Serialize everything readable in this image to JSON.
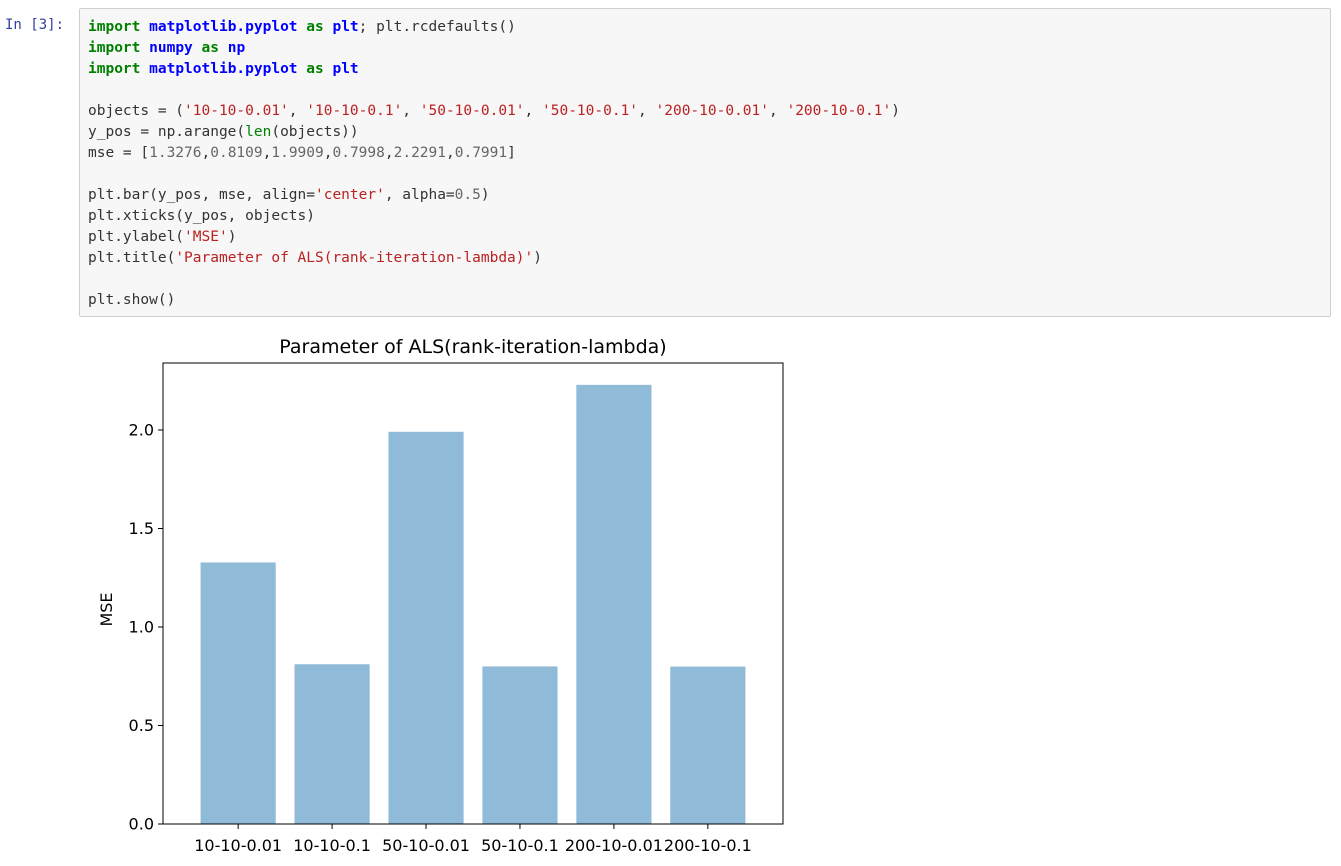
{
  "prompt": "In [3]:",
  "code_lines": [
    [
      {
        "t": "import",
        "c": "kw"
      },
      {
        "t": " "
      },
      {
        "t": "matplotlib.pyplot",
        "c": "mod"
      },
      {
        "t": " "
      },
      {
        "t": "as",
        "c": "kw"
      },
      {
        "t": " "
      },
      {
        "t": "plt",
        "c": "mod"
      },
      {
        "t": "; plt.rcdefaults()"
      }
    ],
    [
      {
        "t": "import",
        "c": "kw"
      },
      {
        "t": " "
      },
      {
        "t": "numpy",
        "c": "mod"
      },
      {
        "t": " "
      },
      {
        "t": "as",
        "c": "kw"
      },
      {
        "t": " "
      },
      {
        "t": "np",
        "c": "mod"
      }
    ],
    [
      {
        "t": "import",
        "c": "kw"
      },
      {
        "t": " "
      },
      {
        "t": "matplotlib.pyplot",
        "c": "mod"
      },
      {
        "t": " "
      },
      {
        "t": "as",
        "c": "kw"
      },
      {
        "t": " "
      },
      {
        "t": "plt",
        "c": "mod"
      }
    ],
    [],
    [
      {
        "t": "objects = ("
      },
      {
        "t": "'10-10-0.01'",
        "c": "str"
      },
      {
        "t": ", "
      },
      {
        "t": "'10-10-0.1'",
        "c": "str"
      },
      {
        "t": ", "
      },
      {
        "t": "'50-10-0.01'",
        "c": "str"
      },
      {
        "t": ", "
      },
      {
        "t": "'50-10-0.1'",
        "c": "str"
      },
      {
        "t": ", "
      },
      {
        "t": "'200-10-0.01'",
        "c": "str"
      },
      {
        "t": ", "
      },
      {
        "t": "'200-10-0.1'",
        "c": "str"
      },
      {
        "t": ")"
      }
    ],
    [
      {
        "t": "y_pos = np.arange("
      },
      {
        "t": "len",
        "c": "bi"
      },
      {
        "t": "(objects))"
      }
    ],
    [
      {
        "t": "mse = ["
      },
      {
        "t": "1.3276",
        "c": "num"
      },
      {
        "t": ","
      },
      {
        "t": "0.8109",
        "c": "num"
      },
      {
        "t": ","
      },
      {
        "t": "1.9909",
        "c": "num"
      },
      {
        "t": ","
      },
      {
        "t": "0.7998",
        "c": "num"
      },
      {
        "t": ","
      },
      {
        "t": "2.2291",
        "c": "num"
      },
      {
        "t": ","
      },
      {
        "t": "0.7991",
        "c": "num"
      },
      {
        "t": "]"
      }
    ],
    [],
    [
      {
        "t": "plt.bar(y_pos, mse, align="
      },
      {
        "t": "'center'",
        "c": "str"
      },
      {
        "t": ", alpha="
      },
      {
        "t": "0.5",
        "c": "num"
      },
      {
        "t": ")"
      }
    ],
    [
      {
        "t": "plt.xticks(y_pos, objects)"
      }
    ],
    [
      {
        "t": "plt.ylabel("
      },
      {
        "t": "'MSE'",
        "c": "str"
      },
      {
        "t": ")"
      }
    ],
    [
      {
        "t": "plt.title("
      },
      {
        "t": "'Parameter of ALS(rank-iteration-lambda)'",
        "c": "str"
      },
      {
        "t": ")"
      }
    ],
    [],
    [
      {
        "t": "plt.show()"
      }
    ]
  ],
  "chart_data": {
    "type": "bar",
    "title": "Parameter of ALS(rank-iteration-lambda)",
    "xlabel": "",
    "ylabel": "MSE",
    "categories": [
      "10-10-0.01",
      "10-10-0.1",
      "50-10-0.01",
      "50-10-0.1",
      "200-10-0.01",
      "200-10-0.1"
    ],
    "values": [
      1.3276,
      0.8109,
      1.9909,
      0.7998,
      2.2291,
      0.7991
    ],
    "ylim": [
      0,
      2.34
    ],
    "yticks": [
      0.0,
      0.5,
      1.0,
      1.5,
      2.0
    ],
    "ytick_labels": [
      "0.0",
      "0.5",
      "1.0",
      "1.5",
      "2.0"
    ],
    "bar_color": "#1f77b4",
    "bar_alpha": 0.5,
    "grid": false,
    "legend": "none"
  }
}
